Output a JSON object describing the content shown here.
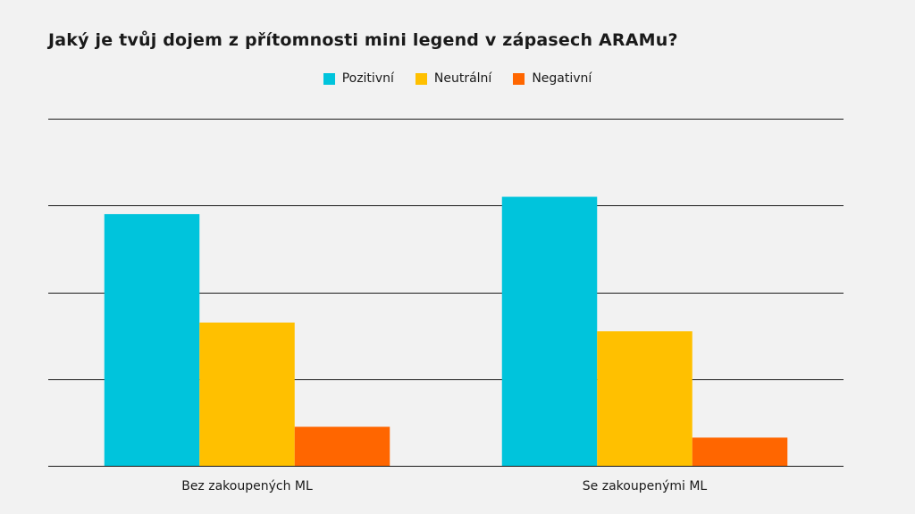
{
  "title": "Jaký je tvůj dojem z přítomnosti mini legend v zápasech ARAMu?",
  "legend": {
    "items": [
      {
        "label": "Pozitivní",
        "color": "#00c4dc"
      },
      {
        "label": "Neutrální",
        "color": "#ffc000"
      },
      {
        "label": "Negativní",
        "color": "#ff6600"
      }
    ]
  },
  "chart_data": {
    "type": "bar",
    "title": "Jaký je tvůj dojem z přítomnosti mini legend v zápasech ARAMu?",
    "xlabel": "",
    "ylabel": "",
    "categories": [
      "Bez zakoupených ML",
      "Se zakoupenými ML"
    ],
    "series": [
      {
        "name": "Pozitivní",
        "color": "#00c4dc",
        "values": [
          58,
          62
        ]
      },
      {
        "name": "Neutrální",
        "color": "#ffc000",
        "values": [
          33,
          31
        ]
      },
      {
        "name": "Negativní",
        "color": "#ff6600",
        "values": [
          9,
          6.5
        ]
      }
    ],
    "ylim": [
      0,
      80
    ],
    "gridlines": [
      0,
      20,
      40,
      60,
      80
    ],
    "grid": true,
    "tick_labels_shown": false,
    "legend_position": "top-center"
  }
}
